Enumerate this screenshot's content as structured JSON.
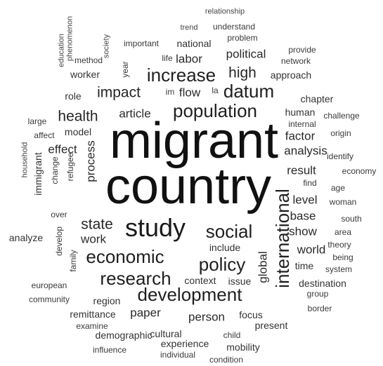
{
  "words": {
    "migrant": "migrant",
    "country": "country",
    "study": "study",
    "population": "population",
    "international": "international",
    "development": "development",
    "economic": "economic",
    "social": "social",
    "research": "research",
    "policy": "policy",
    "increase": "increase",
    "datum": "datum",
    "impact": "impact",
    "health": "health",
    "process": "process",
    "state": "state",
    "article": "article",
    "effect": "effect",
    "paper": "paper",
    "result": "result",
    "global": "global",
    "factor": "factor",
    "analysis": "analysis",
    "immigrant": "immigrant",
    "level": "level",
    "base": "base",
    "world": "world",
    "show": "show",
    "person": "person",
    "work": "work",
    "high": "high",
    "flow": "flow",
    "labor": "labor",
    "political": "political",
    "human": "human",
    "model": "model",
    "change": "change",
    "refugee": "refugee",
    "region": "region",
    "context": "context",
    "issue": "issue",
    "focus": "focus",
    "include": "include",
    "experience": "experience",
    "mobility": "mobility",
    "cultural": "cultural",
    "demographic": "demographic",
    "remittance": "remittance",
    "examine": "examine",
    "influence": "influence",
    "individual": "individual",
    "condition": "condition",
    "child": "child",
    "present": "present",
    "border": "border",
    "destination": "destination",
    "group": "group",
    "time": "time",
    "system": "system",
    "theory": "theory",
    "being": "being",
    "area": "area",
    "south": "south",
    "woman": "woman",
    "age": "age",
    "find": "find",
    "economy": "economy",
    "identify": "identify",
    "origin": "origin",
    "challenge": "challenge",
    "chapter": "chapter",
    "internal": "internal",
    "approach": "approach",
    "network": "network",
    "provide": "provide",
    "problem": "problem",
    "understand": "understand",
    "relationship": "relationship",
    "trend": "trend",
    "national": "national",
    "important": "important",
    "society": "society",
    "phenomenon": "phenomenon",
    "education": "education",
    "method": "method",
    "worker": "worker",
    "year": "year",
    "life": "life",
    "im": "im",
    "la": "la",
    "role": "role",
    "large": "large",
    "affect": "affect",
    "household": "household",
    "over": "over",
    "develop": "develop",
    "family": "family",
    "analyze": "analyze",
    "european": "european",
    "community": "community"
  }
}
